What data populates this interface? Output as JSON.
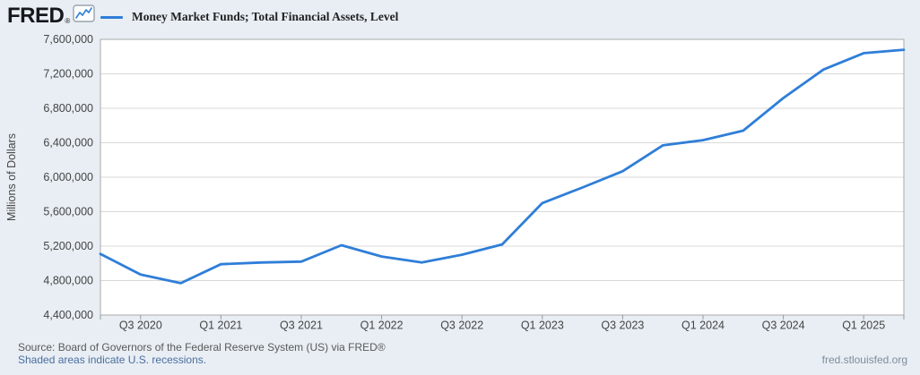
{
  "header": {
    "logo_text": "FRED",
    "logo_registered": "®",
    "legend_label": "Money Market Funds; Total Financial Assets, Level"
  },
  "chart_data": {
    "type": "line",
    "title": "Money Market Funds; Total Financial Assets, Level",
    "ylabel": "Millions of Dollars",
    "x": [
      "2020 Q2",
      "2020 Q3",
      "2020 Q4",
      "2021 Q1",
      "2021 Q2",
      "2021 Q3",
      "2021 Q4",
      "2022 Q1",
      "2022 Q2",
      "2022 Q3",
      "2022 Q4",
      "2023 Q1",
      "2023 Q2",
      "2023 Q3",
      "2023 Q4",
      "2024 Q1",
      "2024 Q2",
      "2024 Q3",
      "2024 Q4",
      "2025 Q1",
      "2025 Q2"
    ],
    "values": [
      5110000,
      4870000,
      4770000,
      4990000,
      5010000,
      5020000,
      5210000,
      5080000,
      5010000,
      5100000,
      5220000,
      5700000,
      5880000,
      6070000,
      6370000,
      6430000,
      6540000,
      6920000,
      7250000,
      7440000,
      7480000
    ],
    "ylim": [
      4400000,
      7600000
    ],
    "ytick_step": 400000,
    "xtick_labels": [
      "Q3 2020",
      "Q1 2021",
      "Q3 2021",
      "Q1 2022",
      "Q3 2022",
      "Q1 2023",
      "Q3 2023",
      "Q1 2024",
      "Q3 2024",
      "Q1 2025"
    ],
    "xtick_first_index": 1,
    "xtick_index_step": 2,
    "grid": "horizontal",
    "legend_position": "top-left",
    "line_color": "#2f7ed8"
  },
  "footer": {
    "source_line": "Source: Board of Governors of the Federal Reserve System (US) via FRED®",
    "recession_note": "Shaded areas indicate U.S. recessions.",
    "site_url": "fred.stlouisfed.org"
  },
  "colors": {
    "background": "#e8eef4",
    "plot_background": "#ffffff",
    "line": "#2f7ed8",
    "gridline": "#d8d8d8",
    "plot_border": "#a9a9a9",
    "tick": "#999999",
    "axis_text": "#444444",
    "legend_text": "#222222",
    "footer_text": "#5a5a5a",
    "link_text": "#4a6e9e",
    "url_text": "#7f8c99",
    "logo_text": "#16181c"
  }
}
